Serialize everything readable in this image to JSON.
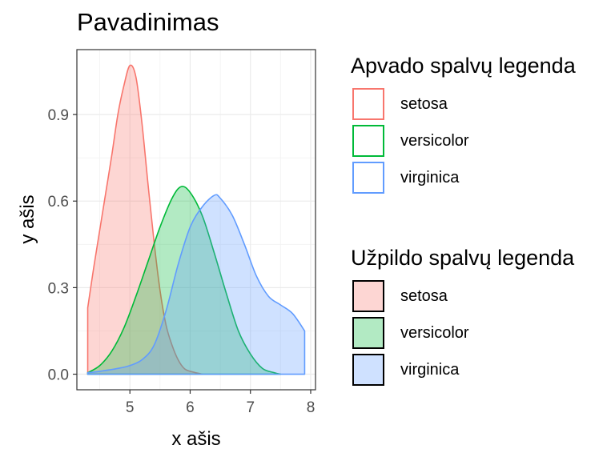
{
  "chart_data": {
    "type": "area",
    "title": "Pavadinimas",
    "xlabel": "x ašis",
    "ylabel": "y ašis",
    "xlim": [
      4.3,
      7.9
    ],
    "ylim": [
      0,
      1.07
    ],
    "x_ticks": [
      5,
      6,
      7,
      8
    ],
    "y_ticks": [
      0.0,
      0.3,
      0.6,
      0.9
    ],
    "y_tick_labels": [
      "0.0",
      "0.3",
      "0.6",
      "0.9"
    ],
    "grid": true,
    "legend_placement": "right",
    "series": [
      {
        "name": "setosa",
        "color": "#F8766D",
        "points": [
          [
            4.3,
            0.23
          ],
          [
            4.4,
            0.37
          ],
          [
            4.5,
            0.5
          ],
          [
            4.6,
            0.63
          ],
          [
            4.7,
            0.76
          ],
          [
            4.8,
            0.9
          ],
          [
            4.9,
            1.0
          ],
          [
            5.0,
            1.07
          ],
          [
            5.1,
            1.03
          ],
          [
            5.2,
            0.87
          ],
          [
            5.3,
            0.66
          ],
          [
            5.4,
            0.46
          ],
          [
            5.5,
            0.29
          ],
          [
            5.6,
            0.17
          ],
          [
            5.7,
            0.1
          ],
          [
            5.8,
            0.05
          ],
          [
            5.9,
            0.02
          ],
          [
            6.0,
            0.01
          ],
          [
            6.2,
            0.0
          ]
        ]
      },
      {
        "name": "versicolor",
        "color": "#00BA38",
        "points": [
          [
            4.3,
            0.005
          ],
          [
            4.5,
            0.03
          ],
          [
            4.7,
            0.08
          ],
          [
            4.9,
            0.16
          ],
          [
            5.1,
            0.27
          ],
          [
            5.3,
            0.39
          ],
          [
            5.5,
            0.51
          ],
          [
            5.7,
            0.61
          ],
          [
            5.85,
            0.65
          ],
          [
            6.0,
            0.63
          ],
          [
            6.2,
            0.55
          ],
          [
            6.4,
            0.42
          ],
          [
            6.6,
            0.28
          ],
          [
            6.8,
            0.15
          ],
          [
            7.0,
            0.07
          ],
          [
            7.2,
            0.02
          ],
          [
            7.4,
            0.005
          ],
          [
            7.5,
            0.0
          ]
        ]
      },
      {
        "name": "virginica",
        "color": "#619CFF",
        "points": [
          [
            4.3,
            0.005
          ],
          [
            4.5,
            0.01
          ],
          [
            4.8,
            0.02
          ],
          [
            5.0,
            0.03
          ],
          [
            5.2,
            0.05
          ],
          [
            5.4,
            0.1
          ],
          [
            5.6,
            0.22
          ],
          [
            5.8,
            0.38
          ],
          [
            6.0,
            0.51
          ],
          [
            6.2,
            0.58
          ],
          [
            6.4,
            0.62
          ],
          [
            6.5,
            0.61
          ],
          [
            6.7,
            0.55
          ],
          [
            6.9,
            0.45
          ],
          [
            7.1,
            0.34
          ],
          [
            7.3,
            0.27
          ],
          [
            7.5,
            0.24
          ],
          [
            7.7,
            0.21
          ],
          [
            7.9,
            0.15
          ]
        ]
      }
    ]
  },
  "legends": {
    "outline": {
      "title": "Apvado spalvų legenda",
      "items": [
        {
          "label": "setosa",
          "color": "#F8766D"
        },
        {
          "label": "versicolor",
          "color": "#00BA38"
        },
        {
          "label": "virginica",
          "color": "#619CFF"
        }
      ]
    },
    "fill": {
      "title": "Užpildo spalvų legenda",
      "items": [
        {
          "label": "setosa",
          "color": "#F8766D"
        },
        {
          "label": "versicolor",
          "color": "#00BA38"
        },
        {
          "label": "virginica",
          "color": "#619CFF"
        }
      ]
    }
  }
}
